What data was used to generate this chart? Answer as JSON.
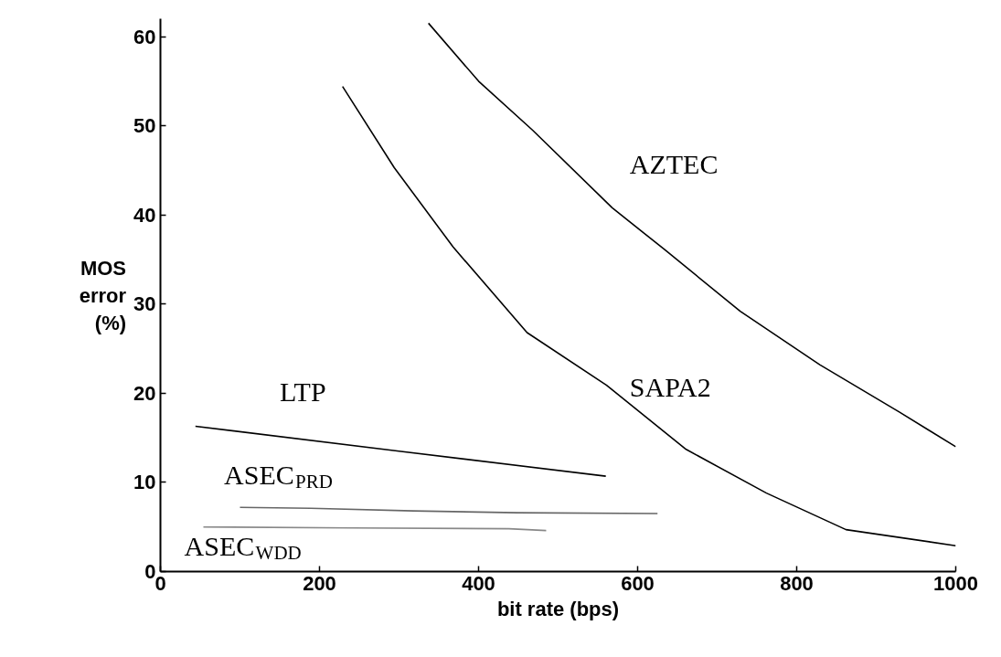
{
  "chart_data": {
    "type": "line",
    "xlabel": "bit rate (bps)",
    "ylabel": "MOS error (%)",
    "xlim": [
      0,
      1000
    ],
    "ylim": [
      0,
      62
    ],
    "xticks": [
      0,
      200,
      400,
      600,
      800,
      1000
    ],
    "yticks": [
      0,
      10,
      20,
      30,
      40,
      50,
      60
    ],
    "grid": false,
    "series": [
      {
        "name": "AZTEC",
        "color": "#000000",
        "x": [
          337,
          400,
          468,
          568,
          634,
          729,
          829,
          929,
          1000
        ],
        "values": [
          61.5,
          55.0,
          49.5,
          40.8,
          36.1,
          29.2,
          23.2,
          17.9,
          14.0
        ]
      },
      {
        "name": "SAPA2",
        "color": "#000000",
        "x": [
          229,
          294,
          368,
          461,
          561,
          661,
          762,
          862,
          1000
        ],
        "values": [
          54.4,
          45.3,
          36.4,
          26.8,
          20.9,
          13.7,
          8.8,
          4.7,
          2.9
        ]
      },
      {
        "name": "LTP",
        "color": "#000000",
        "x": [
          44,
          300,
          560
        ],
        "values": [
          16.3,
          13.5,
          10.7
        ]
      },
      {
        "name": "ASEC$_{PRD}$",
        "color": "#666666",
        "x": [
          100,
          189,
          318,
          449,
          625
        ],
        "values": [
          7.2,
          7.1,
          6.8,
          6.6,
          6.5
        ]
      },
      {
        "name": "ASEC$_{WDD}$",
        "color": "#888888",
        "x": [
          54,
          238,
          438,
          485
        ],
        "values": [
          5.0,
          4.9,
          4.8,
          4.6
        ]
      }
    ]
  }
}
